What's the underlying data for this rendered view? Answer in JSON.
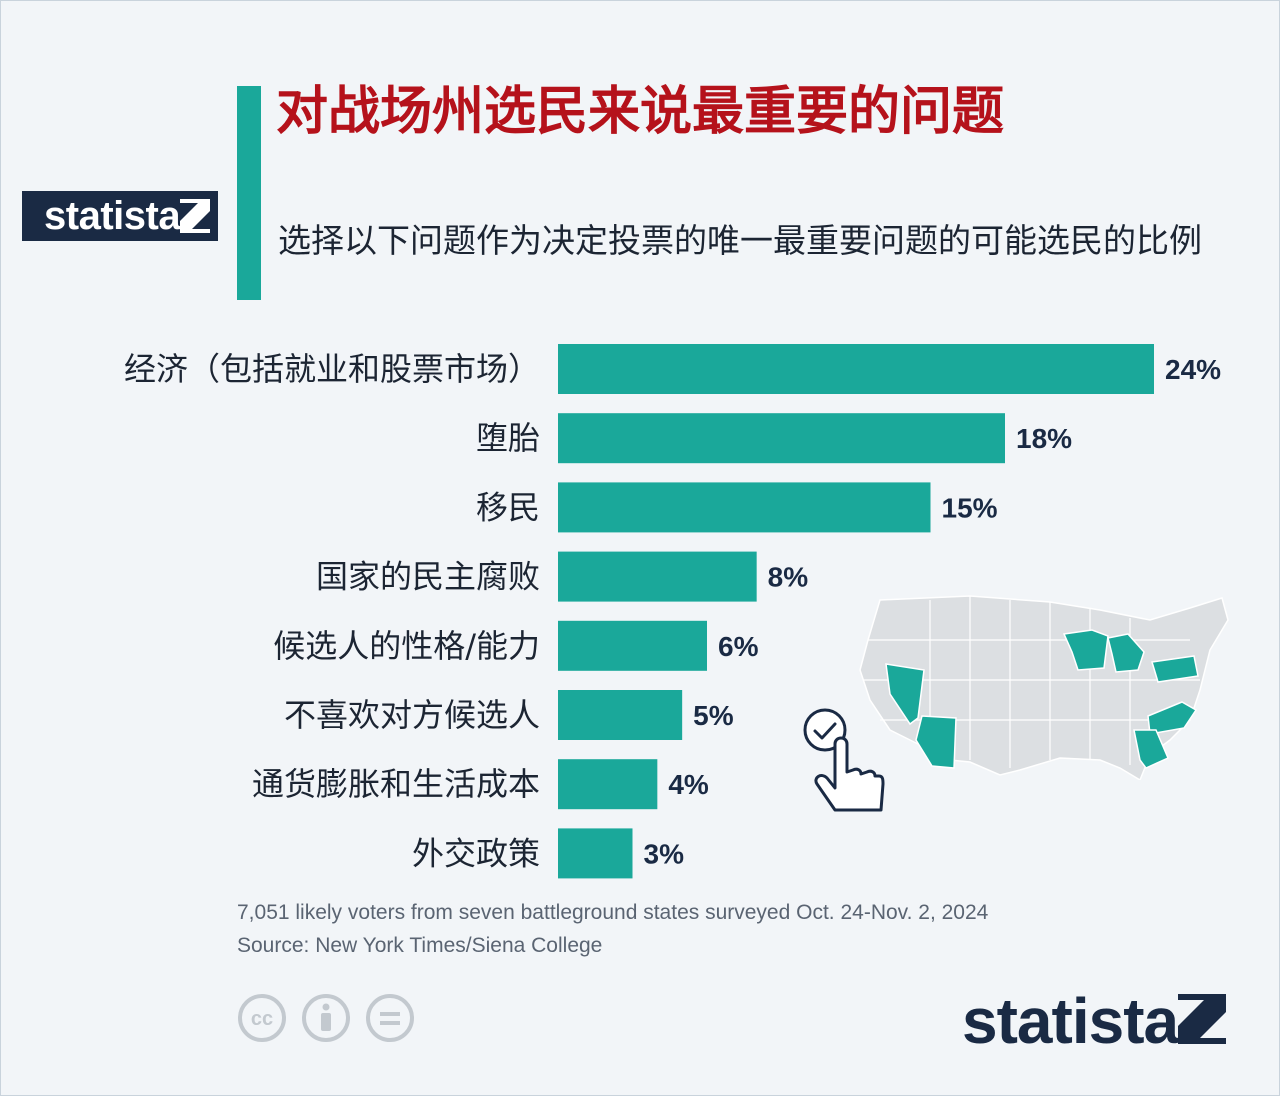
{
  "brand": {
    "name": "statista",
    "color_navy": "#1a2a44",
    "color_accent": "#1aa89a"
  },
  "title": "对战场州选民来说最重要的问题",
  "subtitle": "选择以下问题作为决定投票的唯一最重要问题的可能选民的比例",
  "chart_data": {
    "type": "bar",
    "orientation": "horizontal",
    "categories": [
      "经济（包括就业和股票市场）",
      "堕胎",
      "移民",
      "国家的民主腐败",
      "候选人的性格/能力",
      "不喜欢对方候选人",
      "通货膨胀和生活成本",
      "外交政策"
    ],
    "values": [
      24,
      18,
      15,
      8,
      6,
      5,
      4,
      3
    ],
    "value_labels": [
      "24%",
      "18%",
      "15%",
      "8%",
      "6%",
      "5%",
      "4%",
      "3%"
    ],
    "bar_color": "#1aa89a",
    "xlim": [
      0,
      24
    ]
  },
  "map": {
    "icon": "us-battleground-states-map",
    "highlighted_states": [
      "Nevada",
      "Arizona",
      "Wisconsin",
      "Michigan",
      "Pennsylvania",
      "North Carolina",
      "Georgia"
    ],
    "highlight_color": "#1aa89a",
    "base_color": "#dcdfe2"
  },
  "pointer_icon": "hand-pointer-check-icon",
  "footer": {
    "note": "7,051 likely voters from seven battleground states surveyed Oct. 24-Nov. 2, 2024",
    "source": "Source: New York Times/Siena College",
    "license_icons": [
      "cc-icon",
      "attribution-icon",
      "no-derivatives-icon"
    ]
  }
}
